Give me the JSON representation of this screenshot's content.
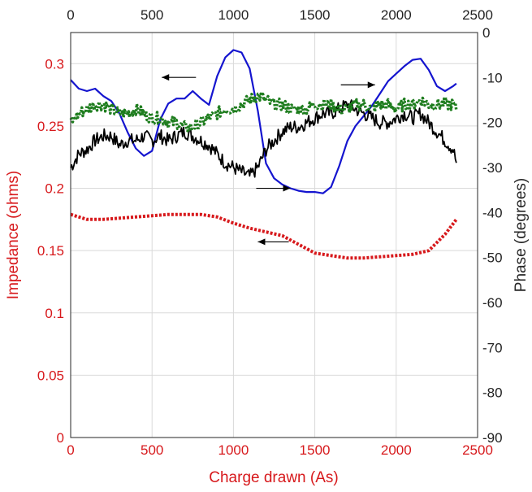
{
  "colors": {
    "impedance_axis": "#d7191c",
    "phase_axis": "#222222",
    "grid": "#d9d9d9",
    "blue_series": "#1515cf",
    "black_series": "#000000",
    "green_series": "#1e7d1e",
    "red_series": "#d7191c"
  },
  "chart_data": {
    "type": "line",
    "xlabel": "Charge drawn (As)",
    "ylabel_left": "Impedance (ohms)",
    "ylabel_right": "Phase (degrees)",
    "xlim": [
      0,
      2500
    ],
    "ylim_left": [
      0,
      0.325
    ],
    "ylim_right": [
      -90,
      0
    ],
    "x_ticks": [
      "0",
      "500",
      "1000",
      "1500",
      "2000",
      "2500"
    ],
    "left_ticks": [
      {
        "value": 0,
        "label": "0"
      },
      {
        "value": 0.05,
        "label": "0.05"
      },
      {
        "value": 0.1,
        "label": "0.1"
      },
      {
        "value": 0.15,
        "label": "0.15"
      },
      {
        "value": 0.2,
        "label": "0.2"
      },
      {
        "value": 0.25,
        "label": "0.25"
      },
      {
        "value": 0.3,
        "label": "0.3"
      }
    ],
    "right_ticks": [
      {
        "value": 0,
        "label": "0"
      },
      {
        "value": -10,
        "label": "-10"
      },
      {
        "value": -20,
        "label": "-20"
      },
      {
        "value": -30,
        "label": "-30"
      },
      {
        "value": -40,
        "label": "-40"
      },
      {
        "value": -50,
        "label": "-50"
      },
      {
        "value": -60,
        "label": "-60"
      },
      {
        "value": -70,
        "label": "-70"
      },
      {
        "value": -80,
        "label": "-80"
      },
      {
        "value": -90,
        "label": "-90"
      }
    ],
    "grid": true,
    "series": [
      {
        "key": "impedance_red",
        "axis": "left",
        "style": "dotted",
        "color": "#d7191c",
        "x": [
          0,
          100,
          200,
          400,
          600,
          800,
          900,
          1000,
          1100,
          1200,
          1300,
          1400,
          1500,
          1600,
          1700,
          1800,
          1900,
          2000,
          2100,
          2200,
          2300,
          2370
        ],
        "y": [
          0.179,
          0.175,
          0.175,
          0.177,
          0.179,
          0.179,
          0.177,
          0.172,
          0.168,
          0.165,
          0.162,
          0.155,
          0.148,
          0.146,
          0.144,
          0.144,
          0.145,
          0.146,
          0.147,
          0.15,
          0.163,
          0.175
        ]
      },
      {
        "key": "impedance_blue",
        "axis": "left",
        "style": "solid",
        "color": "#1515cf",
        "x": [
          0,
          50,
          100,
          150,
          200,
          250,
          300,
          350,
          400,
          450,
          500,
          550,
          600,
          650,
          700,
          750,
          800,
          850,
          900,
          950,
          1000,
          1050,
          1100,
          1150,
          1200,
          1250,
          1300,
          1350,
          1400,
          1450,
          1500,
          1550,
          1600,
          1650,
          1700,
          1750,
          1800,
          1850,
          1900,
          1950,
          2000,
          2050,
          2100,
          2150,
          2200,
          2250,
          2300,
          2350,
          2370
        ],
        "y": [
          0.287,
          0.28,
          0.278,
          0.28,
          0.274,
          0.27,
          0.26,
          0.245,
          0.232,
          0.226,
          0.23,
          0.255,
          0.268,
          0.272,
          0.272,
          0.278,
          0.272,
          0.267,
          0.29,
          0.305,
          0.311,
          0.309,
          0.296,
          0.262,
          0.22,
          0.208,
          0.203,
          0.2,
          0.198,
          0.197,
          0.197,
          0.196,
          0.201,
          0.218,
          0.238,
          0.25,
          0.258,
          0.266,
          0.276,
          0.286,
          0.292,
          0.298,
          0.303,
          0.304,
          0.295,
          0.282,
          0.278,
          0.282,
          0.284
        ]
      },
      {
        "key": "phase_black",
        "axis": "right",
        "style": "noisy",
        "color": "#000000",
        "x": [
          0,
          50,
          100,
          150,
          200,
          250,
          300,
          350,
          400,
          450,
          500,
          550,
          600,
          650,
          700,
          750,
          800,
          850,
          900,
          950,
          1000,
          1050,
          1100,
          1150,
          1200,
          1250,
          1300,
          1350,
          1400,
          1450,
          1500,
          1550,
          1600,
          1650,
          1700,
          1750,
          1800,
          1850,
          1900,
          1950,
          2000,
          2050,
          2100,
          2150,
          2200,
          2250,
          2300,
          2350,
          2370
        ],
        "y": [
          -30,
          -27,
          -26,
          -24,
          -23,
          -23,
          -25,
          -24,
          -24,
          -23,
          -24,
          -23,
          -24,
          -23,
          -22,
          -23,
          -24,
          -25,
          -27,
          -29,
          -30,
          -31,
          -32,
          -30,
          -26,
          -24,
          -22,
          -21,
          -21,
          -20,
          -19,
          -18,
          -18,
          -17,
          -16,
          -17,
          -18,
          -19,
          -20,
          -20,
          -19,
          -18,
          -19,
          -18,
          -20,
          -22,
          -24,
          -26,
          -29
        ]
      },
      {
        "key": "phase_green",
        "axis": "right",
        "style": "dotted-noisy",
        "color": "#1e7d1e",
        "x": [
          0,
          50,
          100,
          150,
          200,
          250,
          300,
          350,
          400,
          450,
          500,
          550,
          600,
          650,
          700,
          750,
          800,
          850,
          900,
          950,
          1000,
          1050,
          1100,
          1150,
          1200,
          1250,
          1300,
          1350,
          1400,
          1450,
          1500,
          1550,
          1600,
          1650,
          1700,
          1750,
          1800,
          1850,
          1900,
          1950,
          2000,
          2050,
          2100,
          2150,
          2200,
          2250,
          2300,
          2350,
          2370
        ],
        "y": [
          -20,
          -18,
          -17,
          -16,
          -16,
          -17,
          -18,
          -18,
          -17,
          -18,
          -19,
          -19,
          -20,
          -20,
          -21,
          -21,
          -20,
          -19,
          -18,
          -17,
          -17,
          -16,
          -15,
          -14,
          -15,
          -16,
          -16,
          -17,
          -17,
          -17,
          -16,
          -16,
          -16,
          -17,
          -17,
          -16,
          -16,
          -17,
          -16,
          -16,
          -17,
          -16,
          -16,
          -15,
          -16,
          -16,
          -16,
          -16,
          -17
        ]
      }
    ],
    "annotations": [
      {
        "key": "arrow-left-blue",
        "direction": "left",
        "x_from": 770,
        "x_to": 560,
        "y": 0.289,
        "axis": "left"
      },
      {
        "key": "arrow-right-green",
        "direction": "right",
        "x_from": 1660,
        "x_to": 1870,
        "y": 0.283,
        "axis": "left"
      },
      {
        "key": "arrow-right-black",
        "direction": "right",
        "x_from": 1140,
        "x_to": 1350,
        "y": 0.2,
        "axis": "left"
      },
      {
        "key": "arrow-left-red",
        "direction": "left",
        "x_from": 1340,
        "x_to": 1150,
        "y": 0.157,
        "axis": "left"
      }
    ]
  }
}
